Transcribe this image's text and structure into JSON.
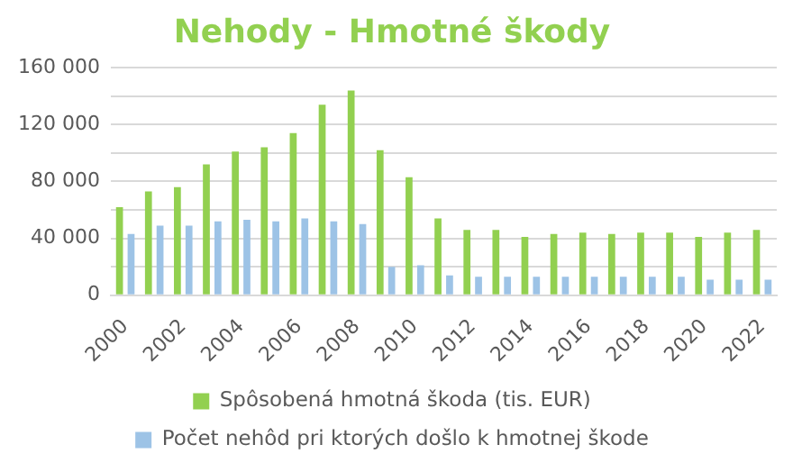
{
  "chart_data": {
    "type": "bar",
    "title": "Nehody - Hmotné škody",
    "categories": [
      "2000",
      null,
      "2002",
      null,
      "2004",
      null,
      "2006",
      null,
      "2008",
      null,
      "2010",
      null,
      "2012",
      null,
      "2014",
      null,
      "2016",
      null,
      "2018",
      null,
      "2020",
      null,
      "2022"
    ],
    "series": [
      {
        "name": "Spôsobená hmotná škoda (tis. EUR)",
        "color": "#92d050",
        "values": [
          62000,
          73000,
          76000,
          92000,
          101000,
          104000,
          114000,
          134000,
          144000,
          102000,
          83000,
          54000,
          46000,
          46000,
          41000,
          43000,
          44000,
          43000,
          44000,
          44000,
          41000,
          44000,
          46000
        ]
      },
      {
        "name": "Počet nehôd pri ktorých došlo k hmotnej škode",
        "color": "#9dc3e6",
        "values": [
          43000,
          49000,
          49000,
          52000,
          53000,
          52000,
          54000,
          52000,
          50000,
          20000,
          21000,
          14000,
          13000,
          13000,
          13000,
          13000,
          13000,
          13000,
          13000,
          13000,
          11000,
          11000,
          11000
        ]
      }
    ],
    "ylim": [
      0,
      160000
    ],
    "yticks": [
      0,
      {
        "value": 20000,
        "label": null
      },
      {
        "value": 40000,
        "label": "40 000"
      },
      {
        "value": 60000,
        "label": null
      },
      {
        "value": 80000,
        "label": "80 000"
      },
      {
        "value": 100000,
        "label": null
      },
      {
        "value": 120000,
        "label": "120 000"
      },
      {
        "value": 140000,
        "label": null
      },
      {
        "value": 160000,
        "label": "160 000"
      }
    ],
    "grid": "y",
    "legend": "bottom"
  }
}
